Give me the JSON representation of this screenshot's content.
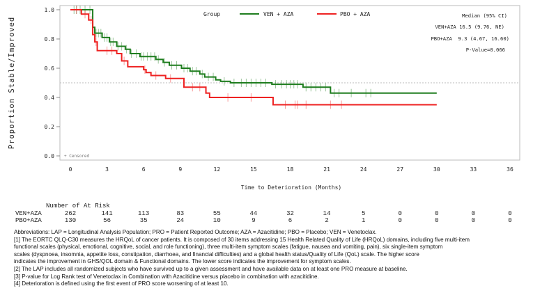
{
  "chart_data": {
    "type": "line",
    "subtype": "kaplan-meier",
    "ylabel": "Proportion Stable/Improved",
    "xlabel": "Time to Deterioration (Months)",
    "xlim": [
      0,
      36
    ],
    "ylim": [
      0,
      1
    ],
    "xticks": [
      "0",
      "3",
      "6",
      "9",
      "12",
      "15",
      "18",
      "21",
      "24",
      "27",
      "30",
      "33",
      "36"
    ],
    "yticks": [
      "0.0",
      "0.2",
      "0.4",
      "0.6",
      "0.8",
      "1.0"
    ],
    "reference_line": 0.5,
    "legend_title": "Group",
    "legend_placement": "top",
    "censored_label": "+ Censored",
    "series": [
      {
        "name": "VEN + AZA",
        "color": "#1e7d1e",
        "steps": [
          [
            0,
            1.0
          ],
          [
            1.83,
            0.88
          ],
          [
            2.0,
            0.84
          ],
          [
            2.6,
            0.81
          ],
          [
            3.2,
            0.78
          ],
          [
            3.8,
            0.75
          ],
          [
            4.5,
            0.73
          ],
          [
            4.9,
            0.7
          ],
          [
            5.7,
            0.68
          ],
          [
            7.0,
            0.66
          ],
          [
            7.6,
            0.64
          ],
          [
            8.1,
            0.62
          ],
          [
            9.1,
            0.6
          ],
          [
            9.8,
            0.58
          ],
          [
            10.6,
            0.56
          ],
          [
            11.0,
            0.54
          ],
          [
            11.9,
            0.52
          ],
          [
            12.3,
            0.51
          ],
          [
            13.1,
            0.5
          ],
          [
            16.5,
            0.49
          ],
          [
            19.05,
            0.47
          ],
          [
            21.3,
            0.43
          ],
          [
            30,
            0.43
          ]
        ],
        "censored": [
          0.3,
          0.5,
          0.8,
          1.2,
          1.6,
          2.1,
          2.3,
          2.5,
          2.8,
          3.0,
          3.3,
          3.5,
          3.9,
          4.2,
          4.6,
          5.0,
          5.4,
          5.8,
          6.0,
          6.3,
          6.6,
          6.9,
          7.2,
          7.7,
          8.3,
          8.7,
          9.3,
          9.6,
          10.0,
          10.3,
          10.8,
          11.3,
          11.7,
          12.6,
          13.4,
          14.0,
          14.4,
          14.8,
          15.2,
          15.6,
          16.0,
          16.8,
          17.3,
          17.7,
          18.0,
          18.3,
          18.6,
          19.3,
          19.7,
          20.1,
          20.5,
          20.9,
          21.6,
          22.0,
          23.0,
          24.2,
          24.6
        ]
      },
      {
        "name": "PBO + AZA",
        "color": "#ee2222",
        "steps": [
          [
            0,
            1.0
          ],
          [
            0.9,
            0.97
          ],
          [
            1.5,
            0.93
          ],
          [
            1.83,
            0.83
          ],
          [
            2.0,
            0.78
          ],
          [
            2.2,
            0.72
          ],
          [
            3.8,
            0.7
          ],
          [
            4.2,
            0.65
          ],
          [
            4.7,
            0.61
          ],
          [
            6.0,
            0.59
          ],
          [
            6.2,
            0.57
          ],
          [
            6.6,
            0.55
          ],
          [
            7.8,
            0.53
          ],
          [
            9.3,
            0.47
          ],
          [
            11.1,
            0.43
          ],
          [
            11.4,
            0.4
          ],
          [
            16.6,
            0.35
          ],
          [
            30,
            0.35
          ]
        ],
        "censored": [
          0.5,
          1.2,
          1.7,
          2.1,
          3.0,
          3.4,
          4.4,
          6.1,
          7.0,
          8.2,
          10.0,
          10.6,
          12.9,
          14.8,
          17.6,
          18.4,
          18.6,
          19.3,
          21.3,
          22.2
        ]
      }
    ]
  },
  "median_box": {
    "header": "Median (95% CI)",
    "ven": "VEN+AZA 16.5 (9.76, NE)",
    "pbo": "PBO+AZA  9.3 (4.67, 16.60)",
    "pvalue": "P-Value=0.066"
  },
  "at_risk": {
    "title": "Number of At Risk",
    "rows": [
      {
        "label": "VEN+AZA",
        "values": [
          "262",
          "141",
          "113",
          "83",
          "55",
          "44",
          "32",
          "14",
          "5",
          "0",
          "0",
          "0",
          "0"
        ]
      },
      {
        "label": "PBO+AZA",
        "values": [
          "130",
          "56",
          "35",
          "24",
          "10",
          "9",
          "6",
          "2",
          "1",
          "0",
          "0",
          "0",
          "0"
        ]
      }
    ]
  },
  "footnotes": [
    "Abbreviations: LAP = Longitudinal Analysis Population; PRO = Patient Reported Outcome; AZA = Azacitidine; PBO = Placebo; VEN = Venetoclax.",
    "[1] The EORTC QLQ-C30 measures the HRQoL of cancer patients. It is composed of 30 items addressing 15 Health Related Quality of Life (HRQoL) domains, including five multi-item",
    "functional scales (physical, emotional, cognitive, social, and role functioning), three multi-item symptom scales (fatigue, nausea and vomiting, pain), six single-item symptom",
    "scales (dyspnoea, insomnia, appetite loss, constipation, diarrhoea, and financial difficulties) and a global health status/Quality of Life (QoL) scale. The higher score",
    "indicates the improvement in GHS/QOL domain & Functional domains. The lower score indicates the improvement for symptom scales.",
    "[2] The LAP includes all randomized subjects who have survived up to a given assessment and have available data on at least one PRO measure at baseline.",
    "[3] P-value for Log Rank test of Venetoclax in Combination with Azacitidine versus placebo in combination with azacitidine.",
    "[4] Deterioration is defined using the first event of PRO score worsening of at least 10."
  ]
}
